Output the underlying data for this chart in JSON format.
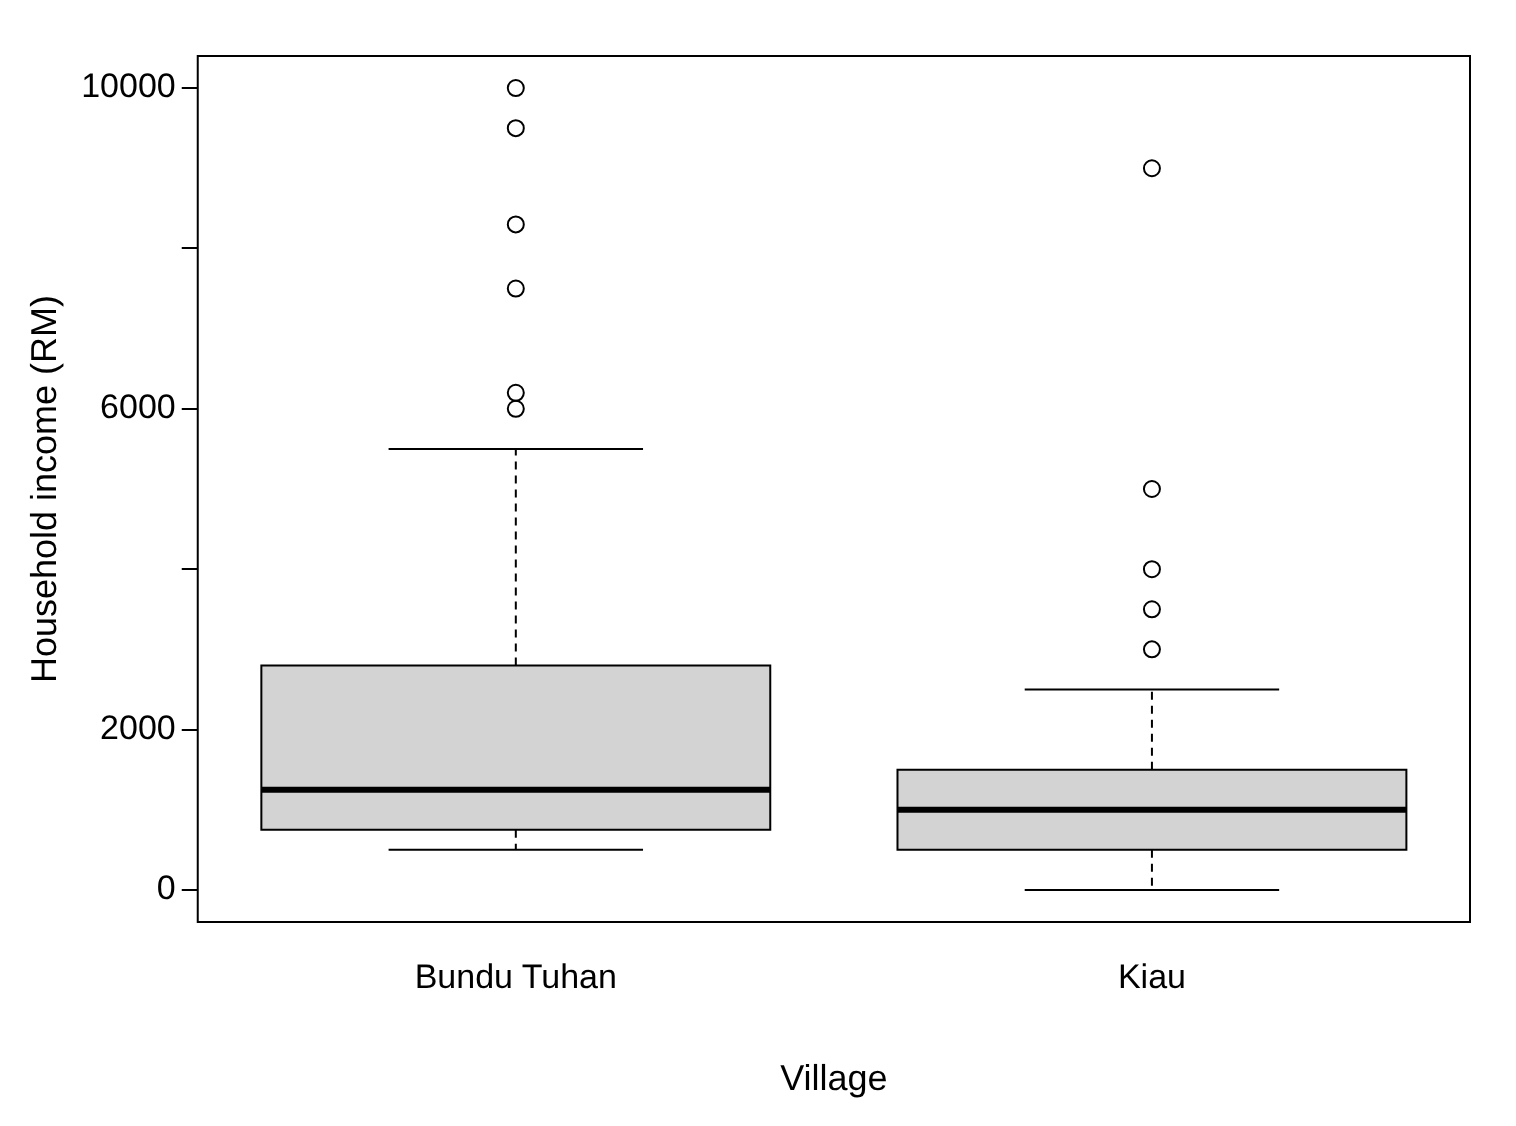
{
  "chart_data": {
    "type": "box",
    "xlabel": "Village",
    "ylabel": "Household income (RM)",
    "categories": [
      "Bundu Tuhan",
      "Kiau"
    ],
    "color": "#d3d3d3",
    "boxes": [
      {
        "low": 500,
        "q1": 750,
        "median": 1250,
        "q3": 2800,
        "high": 5500,
        "outliers": [
          6000,
          6200,
          7500,
          8300,
          9500,
          10000
        ]
      },
      {
        "low": 0,
        "q1": 500,
        "median": 1000,
        "q3": 1500,
        "high": 2500,
        "outliers": [
          3000,
          3500,
          4000,
          5000,
          9000
        ]
      }
    ],
    "ylim": [
      -400,
      10400
    ],
    "yticks": [
      0,
      2000,
      {
        "value": 4000,
        "label": null
      },
      6000,
      {
        "value": 8000,
        "label": null
      },
      10000
    ],
    "grid": false,
    "legend": false,
    "marker": "circle"
  }
}
